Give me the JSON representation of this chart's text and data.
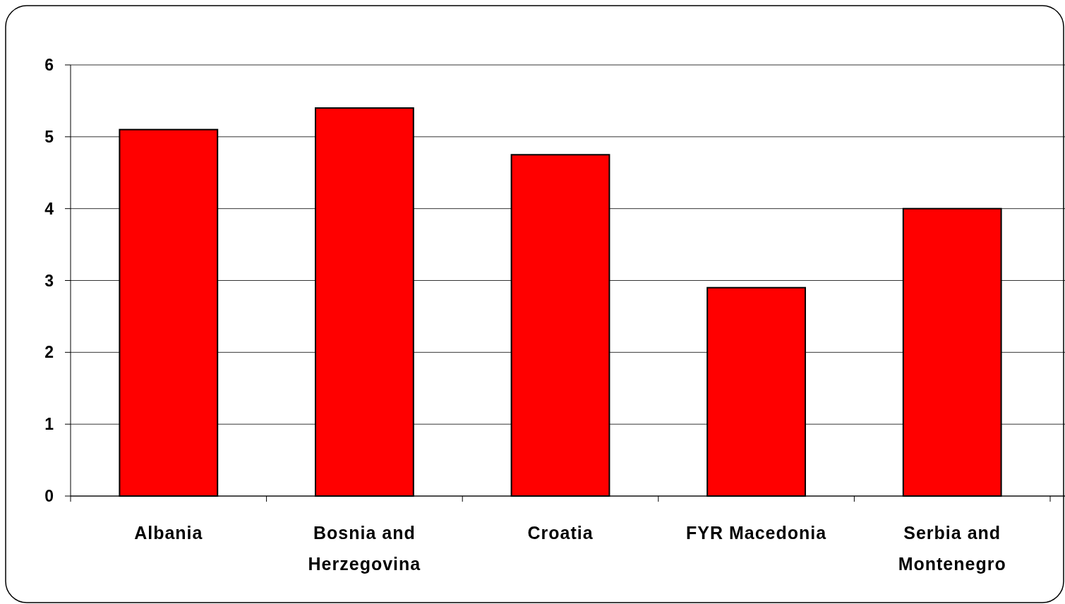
{
  "chart_data": {
    "type": "bar",
    "categories": [
      "Albania",
      "Bosnia and Herzegovina",
      "Croatia",
      "FYR Macedonia",
      "Serbia and Montenegro"
    ],
    "values": [
      5.1,
      5.4,
      4.75,
      2.9,
      4.0
    ],
    "color": "#ff0000",
    "ylim": [
      0,
      6
    ],
    "yticks": [
      0,
      1,
      2,
      3,
      4,
      5,
      6
    ],
    "grid": "y"
  }
}
